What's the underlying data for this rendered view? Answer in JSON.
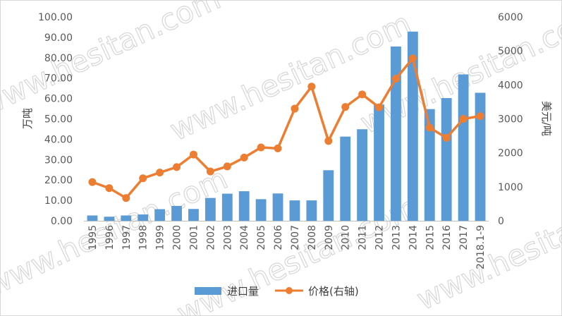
{
  "watermark": "www.hesitan.com",
  "chart_data": {
    "type": "bar+line",
    "categories": [
      "1995",
      "1996",
      "1997",
      "1998",
      "1999",
      "2000",
      "2001",
      "2002",
      "2003",
      "2004",
      "2005",
      "2006",
      "2007",
      "2008",
      "2009",
      "2010",
      "2011",
      "2012",
      "2013",
      "2014",
      "2015",
      "2016",
      "2017",
      "2018.1-9"
    ],
    "series": [
      {
        "name": "进口量",
        "type": "bar",
        "axis": "left",
        "color": "#5b9bd5",
        "values": [
          2.6,
          2.0,
          2.6,
          3.1,
          5.7,
          7.3,
          5.8,
          11.2,
          13.3,
          14.5,
          10.6,
          13.4,
          10.0,
          10.0,
          24.8,
          41.3,
          44.9,
          57.0,
          85.5,
          92.8,
          54.8,
          60.2,
          71.8,
          62.8
        ]
      },
      {
        "name": "价格(右轴)",
        "type": "line",
        "axis": "right",
        "color": "#ed7d31",
        "values": [
          1140,
          960,
          670,
          1250,
          1420,
          1580,
          1950,
          1450,
          1600,
          1860,
          2160,
          2130,
          3300,
          3950,
          2350,
          3350,
          3720,
          3340,
          4180,
          4780,
          2740,
          2440,
          3000,
          3080
        ]
      }
    ],
    "y_left": {
      "label": "万吨",
      "ylim": [
        0,
        100
      ],
      "ticks": [
        "0.00",
        "10.00",
        "20.00",
        "30.00",
        "40.00",
        "50.00",
        "60.00",
        "70.00",
        "80.00",
        "90.00",
        "100.00"
      ]
    },
    "y_right": {
      "label": "美元/吨",
      "ylim": [
        0,
        6000
      ],
      "ticks": [
        "0",
        "1000",
        "2000",
        "3000",
        "4000",
        "5000",
        "6000"
      ]
    },
    "legend": {
      "position": "bottom-center",
      "items": [
        "进口量",
        "价格(右轴)"
      ]
    },
    "grid": false
  }
}
